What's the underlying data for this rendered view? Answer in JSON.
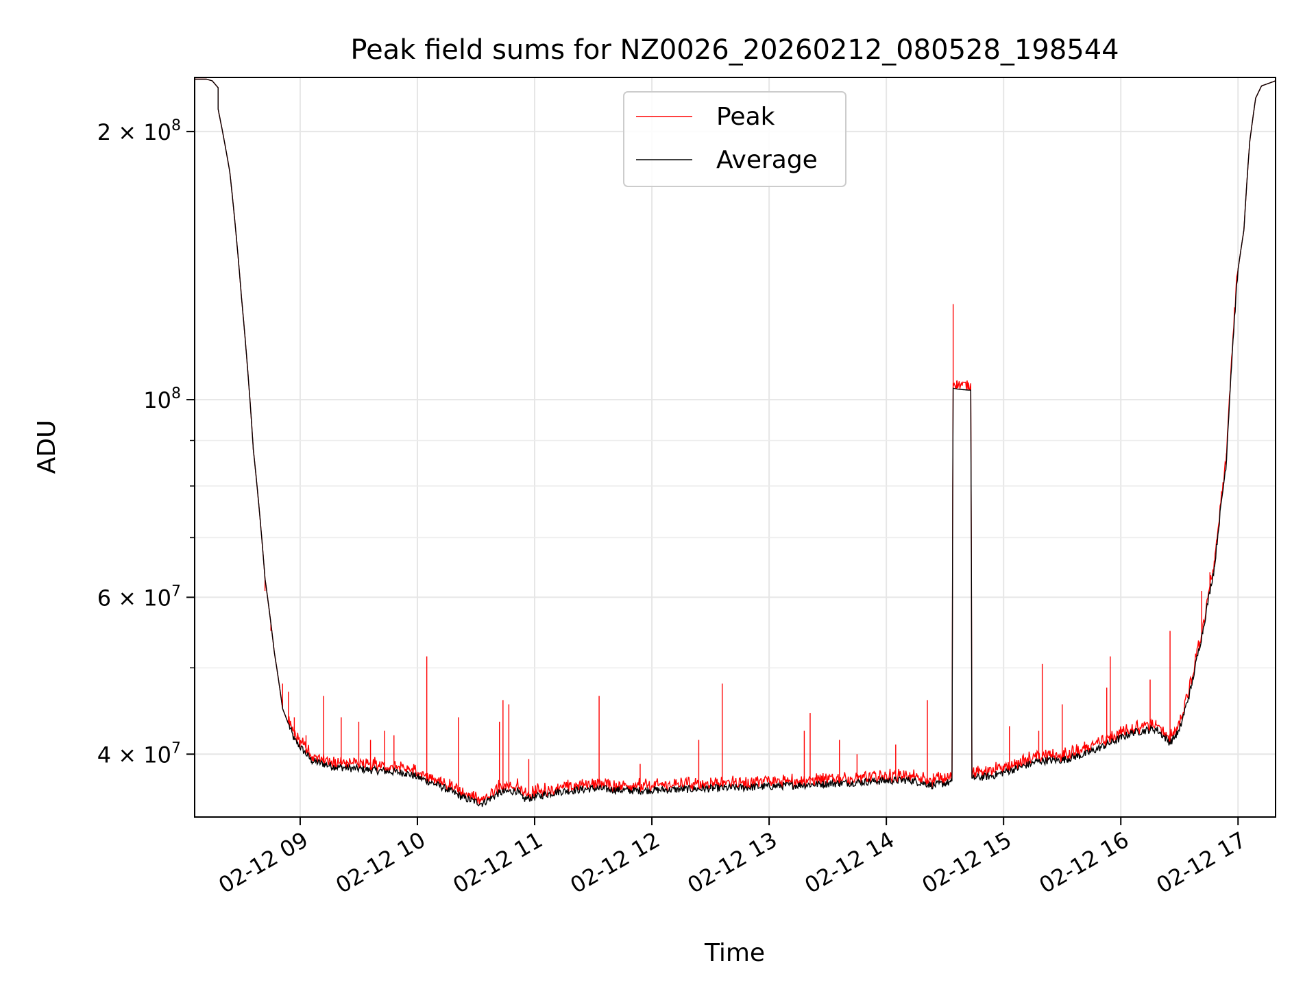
{
  "chart_data": {
    "type": "line",
    "title": "Peak field sums for NZ0026_20260212_080528_198544",
    "xlabel": "Time",
    "ylabel": "ADU",
    "yscale": "log",
    "grid": true,
    "legend_position": "top-center",
    "xlim_hours": [
      8.1,
      17.32
    ],
    "ylim": [
      34000000,
      230000000
    ],
    "x_ticks": [
      {
        "hour": 9,
        "label": "02-12 09"
      },
      {
        "hour": 10,
        "label": "02-12 10"
      },
      {
        "hour": 11,
        "label": "02-12 11"
      },
      {
        "hour": 12,
        "label": "02-12 12"
      },
      {
        "hour": 13,
        "label": "02-12 13"
      },
      {
        "hour": 14,
        "label": "02-12 14"
      },
      {
        "hour": 15,
        "label": "02-12 15"
      },
      {
        "hour": 16,
        "label": "02-12 16"
      },
      {
        "hour": 17,
        "label": "02-12 17"
      }
    ],
    "y_ticks": [
      {
        "value": 40000000,
        "base": "4 × 10",
        "exp": "7"
      },
      {
        "value": 60000000,
        "base": "6 × 10",
        "exp": "7"
      },
      {
        "value": 100000000,
        "base": "10",
        "exp": "8"
      },
      {
        "value": 200000000,
        "base": "2 × 10",
        "exp": "8"
      }
    ],
    "y_minor_ticks": [
      50000000,
      70000000,
      80000000,
      90000000
    ],
    "series": [
      {
        "name": "Peak",
        "color": "#ff0000",
        "spikes": [
          [
            8.7,
            61000000
          ],
          [
            8.75,
            55000000
          ],
          [
            8.85,
            48000000
          ],
          [
            8.9,
            47000000
          ],
          [
            8.95,
            44000000
          ],
          [
            9.05,
            42000000
          ],
          [
            9.2,
            46500000
          ],
          [
            9.35,
            44000000
          ],
          [
            9.5,
            43500000
          ],
          [
            9.6,
            41500000
          ],
          [
            9.72,
            42500000
          ],
          [
            9.8,
            42000000
          ],
          [
            10.08,
            51500000
          ],
          [
            10.35,
            44000000
          ],
          [
            10.7,
            43500000
          ],
          [
            10.73,
            46000000
          ],
          [
            10.78,
            45500000
          ],
          [
            10.95,
            39500000
          ],
          [
            11.55,
            46500000
          ],
          [
            11.9,
            39000000
          ],
          [
            12.4,
            41500000
          ],
          [
            12.6,
            48000000
          ],
          [
            13.3,
            42500000
          ],
          [
            13.35,
            44500000
          ],
          [
            13.6,
            41500000
          ],
          [
            13.75,
            40000000
          ],
          [
            14.08,
            41000000
          ],
          [
            14.35,
            46000000
          ],
          [
            14.57,
            128000000
          ],
          [
            14.6,
            105000000
          ],
          [
            15.05,
            43000000
          ],
          [
            15.3,
            42500000
          ],
          [
            15.33,
            50500000
          ],
          [
            15.5,
            45500000
          ],
          [
            15.88,
            47500000
          ],
          [
            15.91,
            51500000
          ],
          [
            16.25,
            48500000
          ],
          [
            16.42,
            55000000
          ],
          [
            16.69,
            61000000
          ],
          [
            16.76,
            64000000
          ]
        ]
      },
      {
        "name": "Average",
        "color": "#000000",
        "points": [
          [
            8.1,
            229000000
          ],
          [
            8.2,
            229000000
          ],
          [
            8.25,
            228000000
          ],
          [
            8.3,
            224000000
          ],
          [
            8.3,
            212000000
          ],
          [
            8.4,
            180000000
          ],
          [
            8.5,
            130000000
          ],
          [
            8.6,
            88000000
          ],
          [
            8.7,
            63000000
          ],
          [
            8.78,
            52000000
          ],
          [
            8.85,
            45000000
          ],
          [
            8.95,
            41500000
          ],
          [
            9.1,
            39300000
          ],
          [
            9.3,
            38700000
          ],
          [
            9.6,
            38400000
          ],
          [
            9.9,
            38100000
          ],
          [
            10.0,
            37700000
          ],
          [
            10.2,
            36800000
          ],
          [
            10.4,
            35700000
          ],
          [
            10.55,
            35200000
          ],
          [
            10.7,
            36200000
          ],
          [
            10.85,
            36400000
          ],
          [
            10.9,
            35600000
          ],
          [
            11.0,
            35800000
          ],
          [
            11.2,
            36300000
          ],
          [
            11.5,
            36600000
          ],
          [
            11.8,
            36400000
          ],
          [
            12.2,
            36500000
          ],
          [
            12.5,
            36600000
          ],
          [
            12.8,
            36700000
          ],
          [
            13.2,
            36900000
          ],
          [
            13.6,
            37100000
          ],
          [
            13.9,
            37300000
          ],
          [
            14.2,
            37400000
          ],
          [
            14.4,
            36900000
          ],
          [
            14.55,
            37200000
          ],
          [
            14.56,
            37300000
          ],
          [
            14.57,
            103000000
          ],
          [
            14.6,
            102800000
          ],
          [
            14.7,
            102500000
          ],
          [
            14.72,
            102500000
          ],
          [
            14.73,
            37600000
          ],
          [
            14.9,
            37800000
          ],
          [
            15.1,
            38500000
          ],
          [
            15.3,
            39300000
          ],
          [
            15.5,
            39400000
          ],
          [
            15.7,
            40000000
          ],
          [
            15.9,
            41100000
          ],
          [
            16.1,
            42300000
          ],
          [
            16.3,
            42700000
          ],
          [
            16.42,
            41200000
          ],
          [
            16.5,
            42500000
          ],
          [
            16.6,
            47500000
          ],
          [
            16.7,
            55000000
          ],
          [
            16.8,
            65000000
          ],
          [
            16.9,
            85000000
          ],
          [
            17.0,
            140000000
          ],
          [
            17.05,
            155000000
          ],
          [
            17.1,
            195000000
          ],
          [
            17.15,
            218000000
          ],
          [
            17.2,
            225000000
          ],
          [
            17.32,
            228000000
          ]
        ]
      }
    ]
  }
}
